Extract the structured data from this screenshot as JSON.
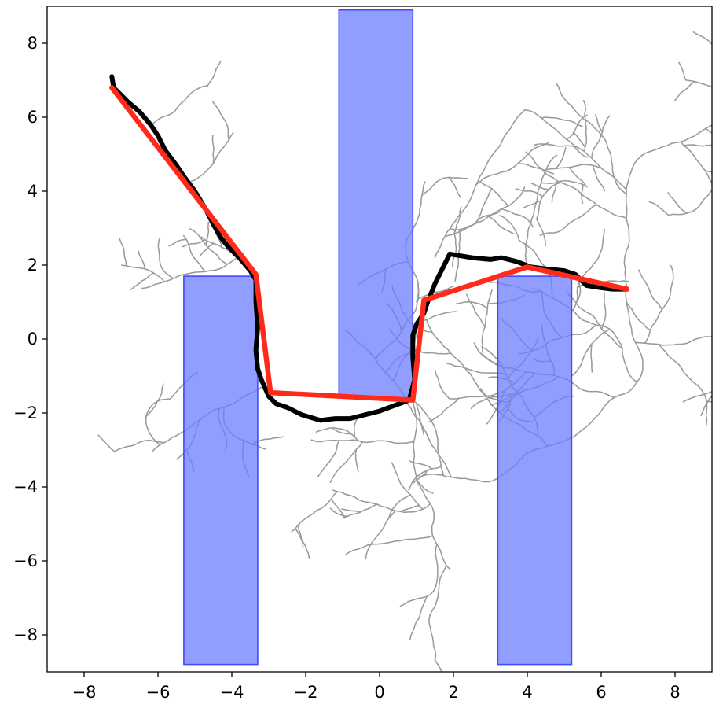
{
  "chart_data": {
    "type": "scatter",
    "title": "",
    "xlabel": "",
    "ylabel": "",
    "xlim": [
      -9,
      9
    ],
    "ylim": [
      -9,
      9
    ],
    "grid": false,
    "xticks": [
      -8,
      -6,
      -4,
      -2,
      0,
      2,
      4,
      6,
      8
    ],
    "yticks": [
      -8,
      -6,
      -4,
      -2,
      0,
      2,
      4,
      6,
      8
    ],
    "xtick_labels": [
      "−8",
      "−6",
      "−4",
      "−2",
      "0",
      "2",
      "4",
      "6",
      "8"
    ],
    "ytick_labels": [
      "−8",
      "−6",
      "−4",
      "−2",
      "0",
      "2",
      "4",
      "6",
      "8"
    ],
    "obstacles": [
      {
        "x0": -5.3,
        "x1": -3.3,
        "y0": -8.8,
        "y1": 1.7
      },
      {
        "x0": -1.1,
        "x1": 0.9,
        "y0": -1.6,
        "y1": 8.9
      },
      {
        "x0": 3.2,
        "x1": 5.2,
        "y0": -8.8,
        "y1": 1.7
      }
    ],
    "raw_path": [
      [
        -7.25,
        7.1
      ],
      [
        -7.2,
        6.8
      ],
      [
        -6.8,
        6.4
      ],
      [
        -6.5,
        6.15
      ],
      [
        -6.2,
        5.8
      ],
      [
        -6.0,
        5.5
      ],
      [
        -5.8,
        5.1
      ],
      [
        -5.5,
        4.7
      ],
      [
        -5.3,
        4.4
      ],
      [
        -5.0,
        4.0
      ],
      [
        -4.7,
        3.5
      ],
      [
        -4.5,
        3.1
      ],
      [
        -4.3,
        2.75
      ],
      [
        -4.1,
        2.5
      ],
      [
        -3.8,
        2.2
      ],
      [
        -3.5,
        1.85
      ],
      [
        -3.35,
        1.6
      ],
      [
        -3.35,
        1.0
      ],
      [
        -3.3,
        0.3
      ],
      [
        -3.35,
        -0.3
      ],
      [
        -3.3,
        -0.8
      ],
      [
        -3.2,
        -1.1
      ],
      [
        -3.0,
        -1.55
      ],
      [
        -2.8,
        -1.75
      ],
      [
        -2.5,
        -1.85
      ],
      [
        -2.1,
        -2.05
      ],
      [
        -1.6,
        -2.2
      ],
      [
        -1.2,
        -2.15
      ],
      [
        -0.8,
        -2.15
      ],
      [
        -0.4,
        -2.05
      ],
      [
        0.0,
        -1.95
      ],
      [
        0.4,
        -1.8
      ],
      [
        0.8,
        -1.65
      ],
      [
        0.95,
        -1.1
      ],
      [
        0.9,
        -0.5
      ],
      [
        0.9,
        0.1
      ],
      [
        1.0,
        0.4
      ],
      [
        1.2,
        0.7
      ],
      [
        1.3,
        1.0
      ],
      [
        1.5,
        1.5
      ],
      [
        1.7,
        1.9
      ],
      [
        1.9,
        2.3
      ],
      [
        2.5,
        2.2
      ],
      [
        3.0,
        2.15
      ],
      [
        3.3,
        2.2
      ],
      [
        3.7,
        2.1
      ],
      [
        4.1,
        1.95
      ],
      [
        4.5,
        1.9
      ],
      [
        5.0,
        1.85
      ],
      [
        5.3,
        1.75
      ],
      [
        5.6,
        1.45
      ],
      [
        5.9,
        1.4
      ],
      [
        6.3,
        1.35
      ],
      [
        6.7,
        1.35
      ]
    ],
    "smoothed_path": [
      [
        -7.25,
        6.8
      ],
      [
        -3.35,
        1.75
      ],
      [
        -2.95,
        -1.45
      ],
      [
        0.9,
        -1.65
      ],
      [
        1.2,
        1.05
      ],
      [
        4.0,
        1.95
      ],
      [
        6.7,
        1.35
      ]
    ]
  }
}
